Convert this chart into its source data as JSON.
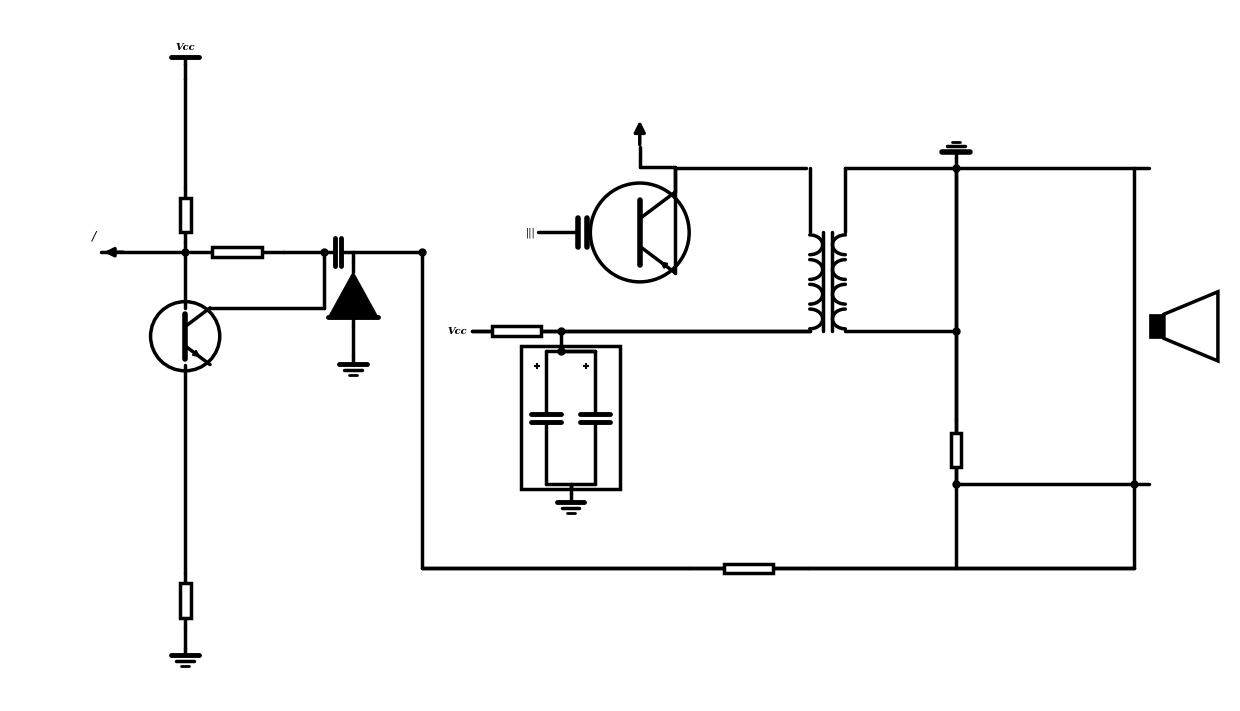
{
  "bg_color": "#ffffff",
  "line_color": "#000000",
  "lw": 2.5,
  "fig_width": 12.4,
  "fig_height": 7.11,
  "xlim": [
    0,
    124
  ],
  "ylim": [
    0,
    71.1
  ]
}
